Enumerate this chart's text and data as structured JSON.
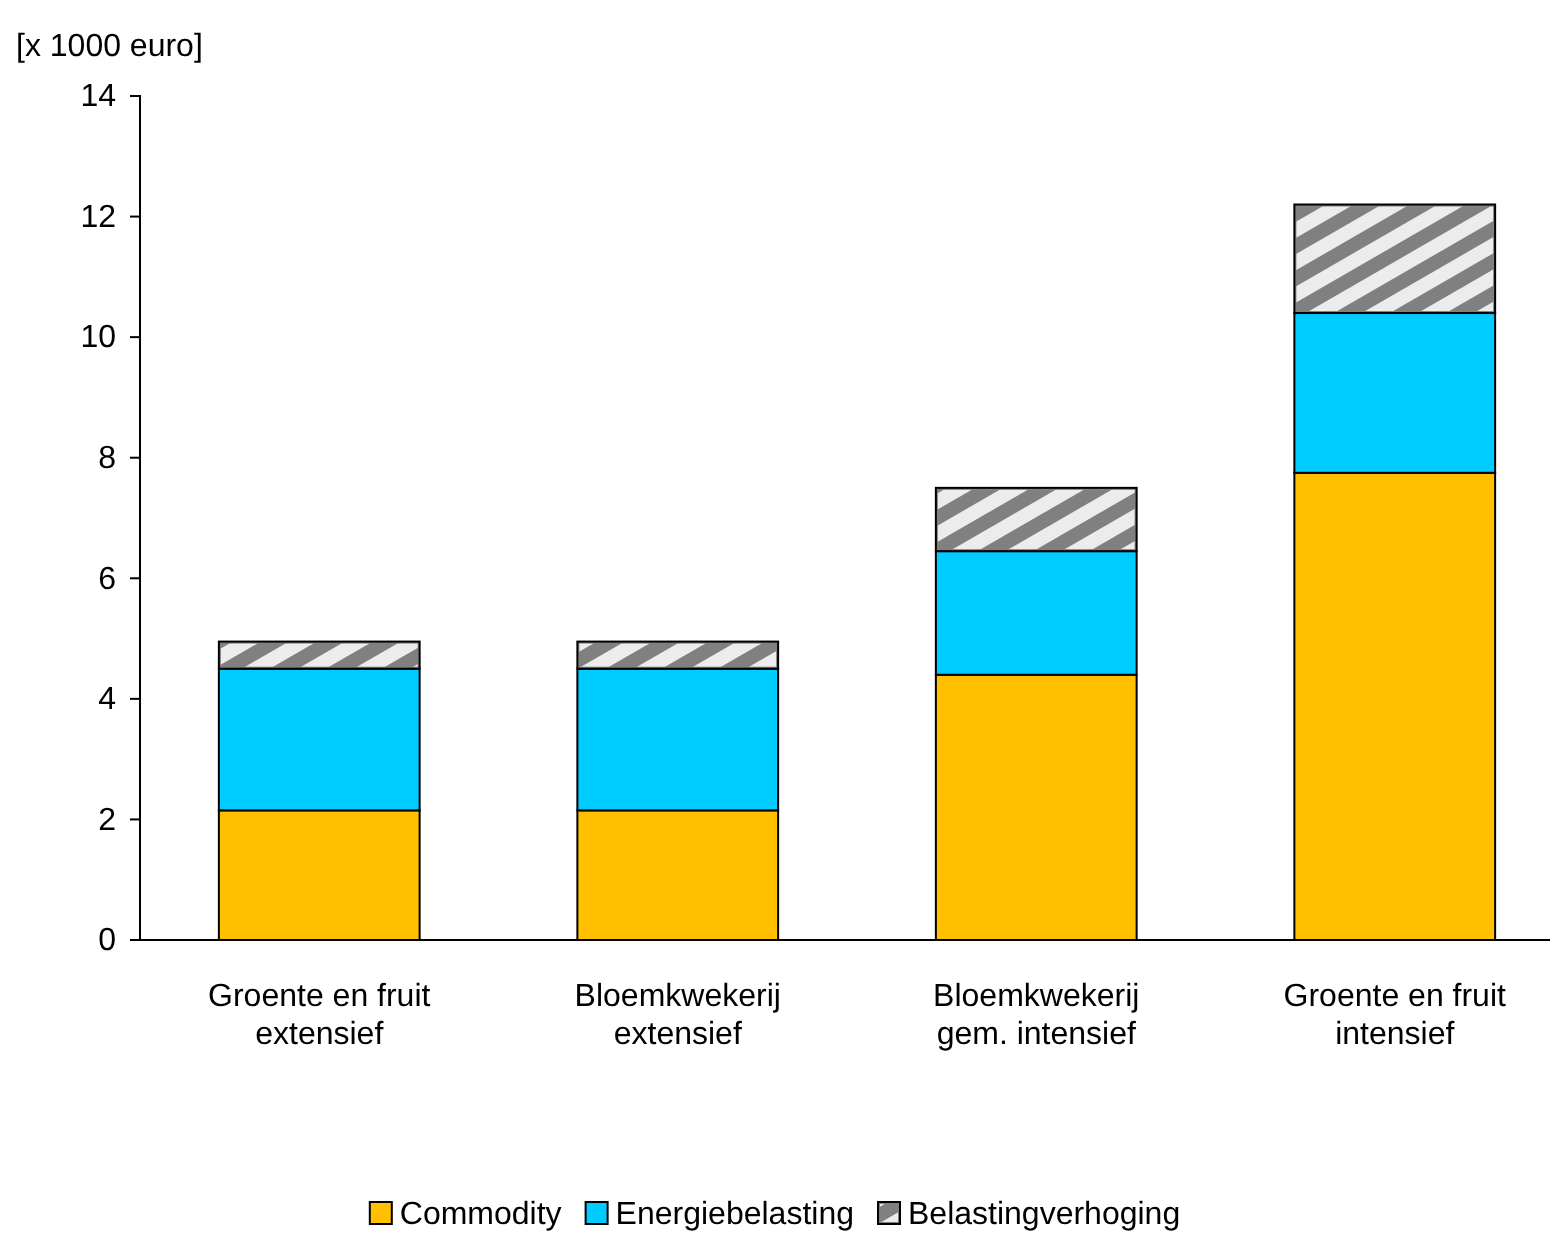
{
  "chart_data": {
    "type": "bar",
    "stacked": true,
    "ylabel": "[x 1000 euro]",
    "categories": [
      "Groente en fruit extensief",
      "Bloemkwekerij extensief",
      "Bloemkwekerij gem. intensief",
      "Groente en fruit intensief"
    ],
    "series": [
      {
        "name": "Commodity",
        "color": "#ffc000",
        "values": [
          2.15,
          2.15,
          4.4,
          7.75
        ]
      },
      {
        "name": "Energiebelasting",
        "color": "#00ccff",
        "values": [
          2.35,
          2.35,
          2.05,
          2.65
        ]
      },
      {
        "name": "Belastingverhoging",
        "color": "#808080",
        "values": [
          0.45,
          0.45,
          1.05,
          1.8
        ]
      }
    ],
    "ylim": [
      0,
      14
    ],
    "yticks": [
      0,
      2,
      4,
      6,
      8,
      10,
      12,
      14
    ],
    "grid": false,
    "legend": "bottom"
  }
}
